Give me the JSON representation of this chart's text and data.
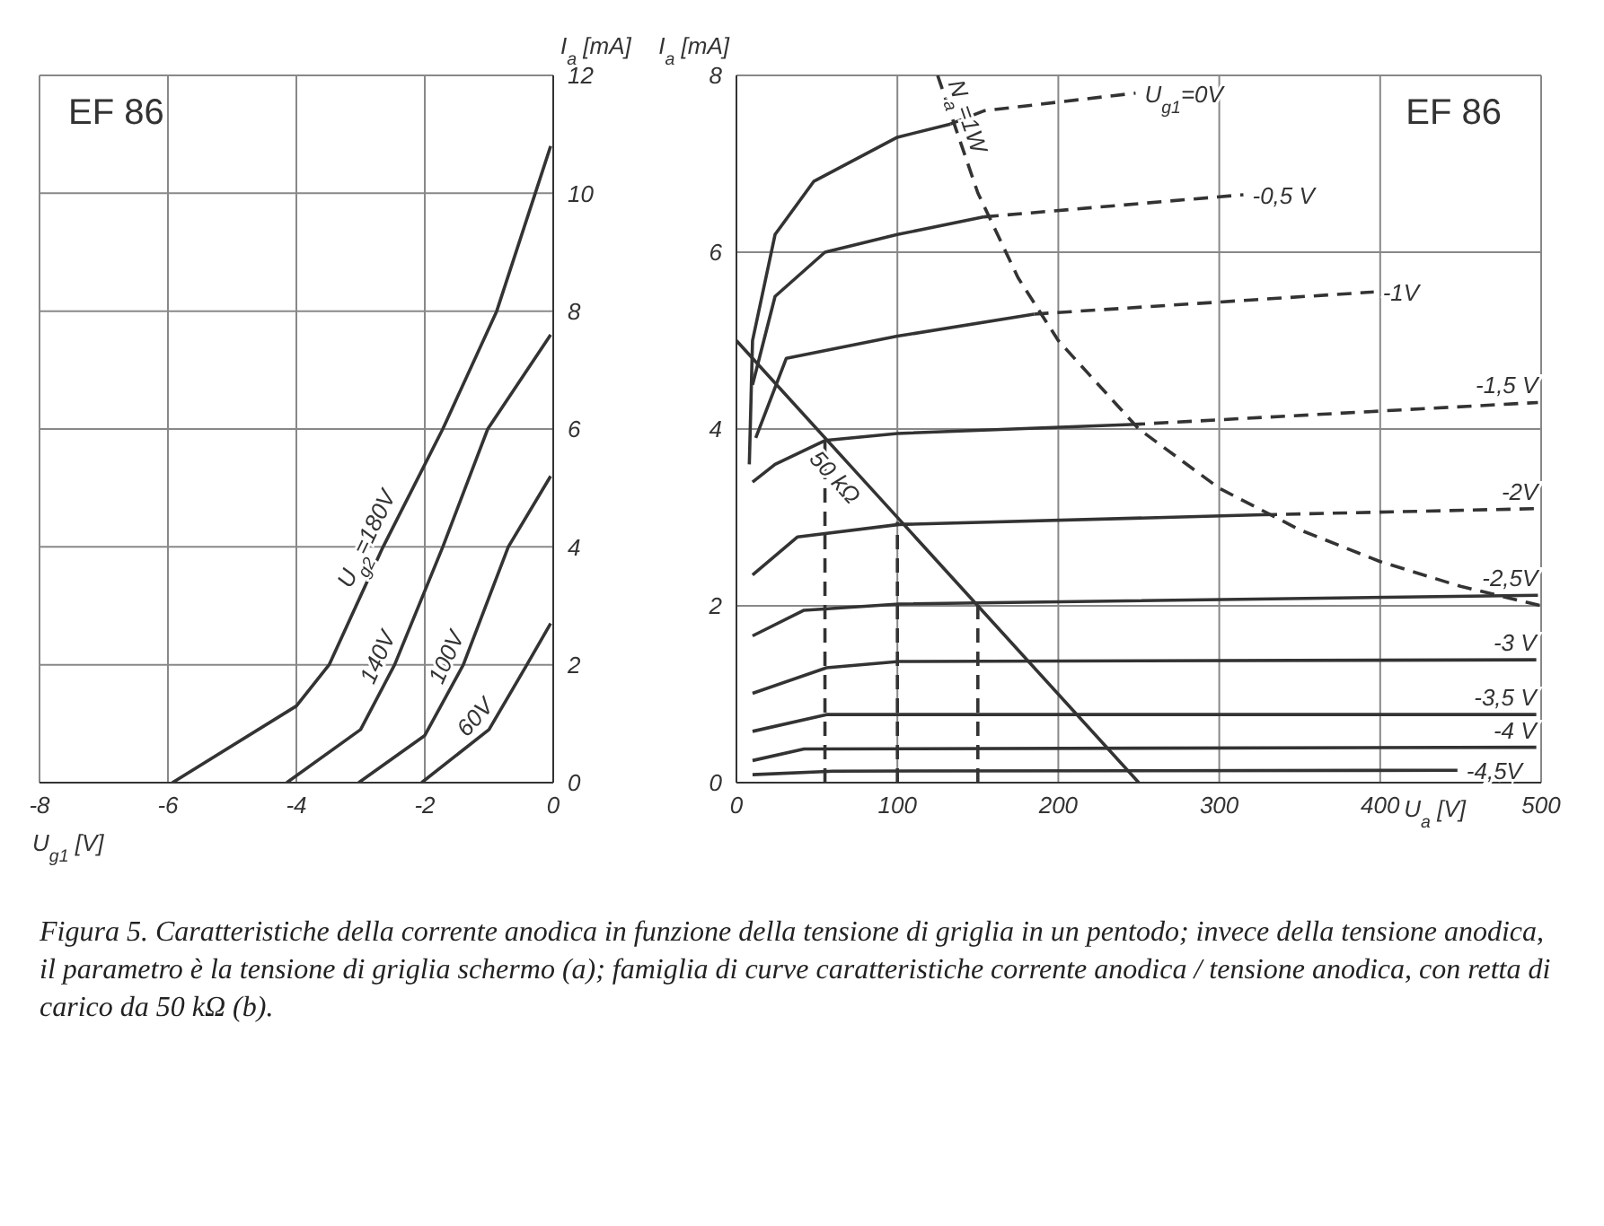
{
  "chart_data": [
    {
      "type": "line",
      "xlabel": "U$_{g1}$ [V]",
      "ylabel": "I$_{a}$ [mA]",
      "xlim": [
        -8,
        0
      ],
      "xticks": [
        -8,
        -6,
        -4,
        -2,
        0
      ],
      "ylim": [
        0,
        12
      ],
      "yticks": [
        0,
        2,
        4,
        6,
        8,
        10,
        12
      ],
      "grid": true,
      "marker": "none",
      "annotations": [
        "EF 86"
      ],
      "series": [
        {
          "name": "U$_{g2}$=180V",
          "color": "#333333",
          "x": [
            -5.93,
            -4,
            -3.49,
            -2.65,
            -1.72,
            -0.88,
            -0.28,
            -0.04
          ],
          "values": [
            0,
            1.3,
            2,
            4,
            6,
            8,
            10,
            10.8
          ]
        },
        {
          "name": "140V",
          "color": "#333333",
          "x": [
            -4.15,
            -3,
            -2.47,
            -1.72,
            -1.02,
            -0.04
          ],
          "values": [
            0,
            0.9,
            2,
            4,
            6,
            7.6
          ]
        },
        {
          "name": "100V",
          "color": "#333333",
          "x": [
            -3.03,
            -2,
            -1.4,
            -0.7,
            -0.04
          ],
          "values": [
            0,
            0.8,
            2,
            4,
            5.2
          ]
        },
        {
          "name": "60V",
          "color": "#333333",
          "x": [
            -2.05,
            -1,
            -0.41,
            -0.04
          ],
          "values": [
            0,
            0.9,
            2,
            2.7
          ]
        }
      ]
    },
    {
      "type": "line",
      "xlabel": "U$_{a}$ [V]",
      "ylabel": "I$_{a}$ [mA]",
      "xlim": [
        0,
        500
      ],
      "xticks": [
        0,
        100,
        200,
        300,
        400,
        500
      ],
      "ylim": [
        0,
        8
      ],
      "yticks": [
        0,
        2,
        4,
        6,
        8
      ],
      "grid": true,
      "marker": "none",
      "annotations": [
        "EF 86",
        "Figura 5. Caratteristiche della corrente anodica in funzione della tensione di griglia in un pentodo; invece della tensione anodica, il parametro è la tensione di griglia schermo (a); famiglia di curve caratteristiche corrente anodica / tensione anodica, con retta di carico da 50 kΩ (b)."
      ],
      "series": [
        {
          "color": "#333333",
          "x": [
            8,
            10,
            24,
            48,
            100,
            133
          ],
          "values": [
            3.6,
            5,
            6.2,
            6.8,
            7.3,
            7.45
          ]
        },
        {
          "name": "U$_{g1}$=0V",
          "color": "#333333",
          "line_style": "dashed",
          "x": [
            133,
            154,
            248
          ],
          "values": [
            7.45,
            7.6,
            7.8
          ]
        },
        {
          "color": "#333333",
          "x": [
            10,
            24,
            55,
            100,
            154
          ],
          "values": [
            4.5,
            5.5,
            6,
            6.2,
            6.4
          ]
        },
        {
          "name": "-0,5 V",
          "color": "#333333",
          "line_style": "dashed",
          "x": [
            154,
            315
          ],
          "values": [
            6.4,
            6.65
          ]
        },
        {
          "color": "#333333",
          "x": [
            12,
            31,
            100,
            185
          ],
          "values": [
            3.9,
            4.8,
            5.05,
            5.3
          ]
        },
        {
          "name": "-1V",
          "color": "#333333",
          "line_style": "dashed",
          "x": [
            185,
            396
          ],
          "values": [
            5.3,
            5.55
          ]
        },
        {
          "color": "#333333",
          "x": [
            10,
            24,
            55,
            100,
            245
          ],
          "values": [
            3.4,
            3.6,
            3.87,
            3.95,
            4.05
          ]
        },
        {
          "name": "-1,5 V",
          "color": "#333333",
          "line_style": "dashed",
          "x": [
            245,
            498
          ],
          "values": [
            4.05,
            4.3
          ]
        },
        {
          "color": "#333333",
          "x": [
            10,
            38,
            101,
            327
          ],
          "values": [
            2.35,
            2.78,
            2.92,
            3.03
          ]
        },
        {
          "name": "-2V",
          "color": "#333333",
          "line_style": "dashed",
          "x": [
            327,
            498
          ],
          "values": [
            3.03,
            3.1
          ]
        },
        {
          "name": "-2,5V",
          "color": "#333333",
          "x": [
            10,
            42,
            101,
            498
          ],
          "values": [
            1.66,
            1.95,
            2.02,
            2.12
          ]
        },
        {
          "name": "-3 V",
          "color": "#333333",
          "x": [
            10,
            56,
            101,
            497
          ],
          "values": [
            1.01,
            1.3,
            1.37,
            1.39
          ]
        },
        {
          "name": "-3,5 V",
          "color": "#333333",
          "x": [
            10,
            56,
            497
          ],
          "values": [
            0.58,
            0.77,
            0.77
          ]
        },
        {
          "name": "-4 V",
          "color": "#333333",
          "x": [
            10,
            42,
            497
          ],
          "values": [
            0.25,
            0.38,
            0.4
          ]
        },
        {
          "name": "-4,5V",
          "color": "#333333",
          "x": [
            10,
            60,
            448
          ],
          "values": [
            0.09,
            0.13,
            0.14
          ]
        },
        {
          "name": "50 kΩ",
          "color": "#333333",
          "x": [
            0,
            70,
            250
          ],
          "values": [
            5,
            3.6,
            0
          ]
        },
        {
          "name": "N$_{a}$=1W",
          "color": "#333333",
          "line_style": "dashed",
          "x": [
            125,
            150,
            175,
            200,
            250,
            300,
            350,
            400,
            450,
            500
          ],
          "values": [
            8,
            6.67,
            5.71,
            5,
            4,
            3.33,
            2.86,
            2.5,
            2.22,
            2
          ]
        },
        {
          "color": "#333333",
          "line_style": "dashed",
          "x": [
            55,
            55
          ],
          "values": [
            0,
            3.87
          ]
        },
        {
          "color": "#333333",
          "line_style": "dashed",
          "x": [
            100,
            100
          ],
          "values": [
            0,
            2.95
          ]
        },
        {
          "color": "#333333",
          "line_style": "dashed",
          "x": [
            150,
            150
          ],
          "values": [
            0,
            2.02
          ]
        }
      ]
    }
  ]
}
